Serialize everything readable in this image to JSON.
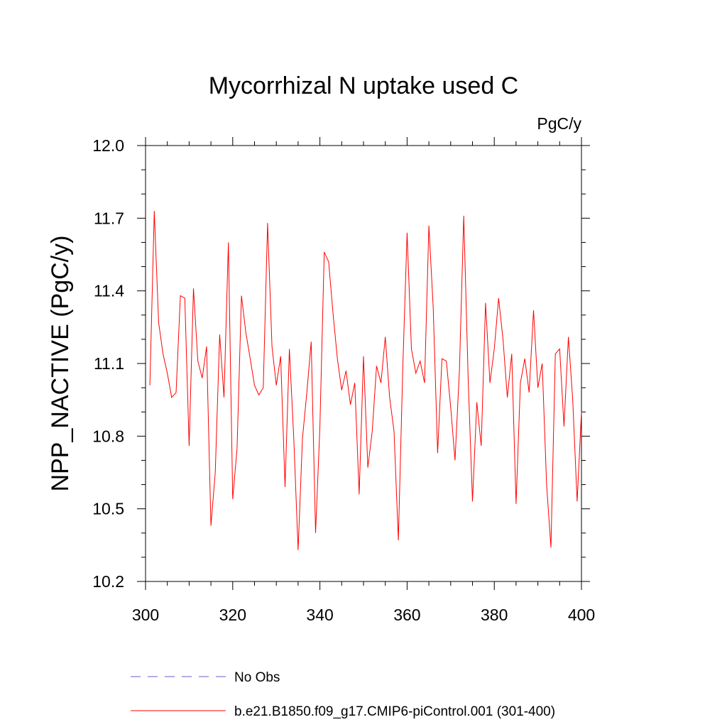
{
  "chart_data": {
    "type": "line",
    "title": "Mycorrhizal N uptake used C",
    "units_label": "PgC/y",
    "ylabel": "NPP_NACTIVE  (PgC/y)",
    "xlabel": "",
    "xlim": [
      300,
      400
    ],
    "ylim": [
      10.2,
      12.0
    ],
    "x_ticks": [
      300,
      320,
      340,
      360,
      380,
      400
    ],
    "x_tick_labels": [
      "300",
      "320",
      "340",
      "360",
      "380",
      "400"
    ],
    "y_ticks": [
      10.2,
      10.5,
      10.8,
      11.1,
      11.4,
      11.7,
      12.0
    ],
    "y_tick_labels": [
      "10.2",
      "10.5",
      "10.8",
      "11.1",
      "11.4",
      "11.7",
      "12.0"
    ],
    "grid": false,
    "legend_position": "bottom",
    "series": [
      {
        "name": "No Obs",
        "color": "#6a5acd",
        "dashed": true,
        "x": [],
        "y": []
      },
      {
        "name": "b.e21.B1850.f09_g17.CMIP6-piControl.001 (301-400)",
        "color": "#ff0000",
        "dashed": false,
        "x": [
          301,
          302,
          303,
          304,
          305,
          306,
          307,
          308,
          309,
          310,
          311,
          312,
          313,
          314,
          315,
          316,
          317,
          318,
          319,
          320,
          321,
          322,
          323,
          324,
          325,
          326,
          327,
          328,
          329,
          330,
          331,
          332,
          333,
          334,
          335,
          336,
          337,
          338,
          339,
          340,
          341,
          342,
          343,
          344,
          345,
          346,
          347,
          348,
          349,
          350,
          351,
          352,
          353,
          354,
          355,
          356,
          357,
          358,
          359,
          360,
          361,
          362,
          363,
          364,
          365,
          366,
          367,
          368,
          369,
          370,
          371,
          372,
          373,
          374,
          375,
          376,
          377,
          378,
          379,
          380,
          381,
          382,
          383,
          384,
          385,
          386,
          387,
          388,
          389,
          390,
          391,
          392,
          393,
          394,
          395,
          396,
          397,
          398,
          399,
          400
        ],
        "y": [
          11.01,
          11.73,
          11.27,
          11.14,
          11.06,
          10.96,
          10.98,
          11.38,
          11.37,
          10.76,
          11.41,
          11.11,
          11.04,
          11.17,
          10.43,
          10.65,
          11.22,
          10.96,
          11.6,
          10.54,
          10.75,
          11.38,
          11.23,
          11.12,
          11.01,
          10.97,
          11.0,
          11.68,
          11.17,
          11.01,
          11.13,
          10.59,
          11.16,
          10.79,
          10.33,
          10.79,
          10.98,
          11.19,
          10.4,
          10.84,
          11.56,
          11.52,
          11.31,
          11.12,
          10.99,
          11.07,
          10.93,
          11.02,
          10.56,
          11.13,
          10.67,
          10.82,
          11.09,
          11.02,
          11.21,
          10.96,
          10.82,
          10.37,
          11.08,
          11.64,
          11.16,
          11.06,
          11.11,
          11.02,
          11.67,
          11.33,
          10.73,
          11.12,
          11.11,
          10.92,
          10.7,
          11.07,
          11.71,
          11.04,
          10.53,
          10.94,
          10.76,
          11.35,
          11.02,
          11.16,
          11.37,
          11.2,
          10.96,
          11.14,
          10.52,
          11.02,
          11.12,
          10.98,
          11.32,
          11.0,
          11.1,
          10.6,
          10.34,
          11.14,
          11.16,
          10.84,
          11.21,
          10.95,
          10.53,
          10.9
        ]
      }
    ]
  }
}
